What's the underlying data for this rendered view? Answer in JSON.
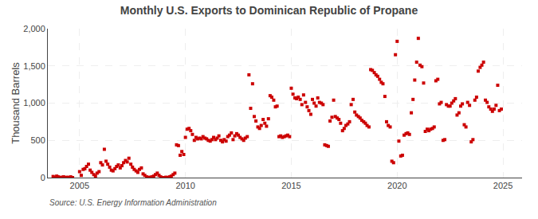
{
  "chart_data": {
    "type": "scatter",
    "title": "Monthly U.S. Exports to Dominican Republic of Propane",
    "ylabel": "Thousand Barrels",
    "annotations": [
      "Source: U.S. Energy Information Administration"
    ],
    "color": "#cc0000",
    "marker": "square",
    "grid": true,
    "xlim": [
      2003.5,
      2025.9
    ],
    "xticks": [
      2005,
      2010,
      2015,
      2020,
      2025
    ],
    "ylim": [
      0,
      2000
    ],
    "yticks": [
      0,
      500,
      {
        "value": 1000,
        "label": "1,000"
      },
      {
        "value": 1500,
        "label": "1,500"
      },
      {
        "value": 2000,
        "label": "2,000"
      }
    ],
    "x": [
      2003.75,
      2003.83,
      2003.92,
      2004.0,
      2004.08,
      2004.17,
      2004.25,
      2004.33,
      2004.42,
      2004.5,
      2004.58,
      2004.67,
      2005.0,
      2005.08,
      2005.17,
      2005.25,
      2005.33,
      2005.42,
      2005.5,
      2005.58,
      2005.67,
      2005.75,
      2005.83,
      2005.92,
      2006.0,
      2006.08,
      2006.17,
      2006.25,
      2006.33,
      2006.42,
      2006.5,
      2006.58,
      2006.67,
      2006.75,
      2006.83,
      2006.92,
      2007.0,
      2007.08,
      2007.17,
      2007.25,
      2007.33,
      2007.42,
      2007.5,
      2007.58,
      2007.67,
      2007.75,
      2007.83,
      2007.92,
      2008.0,
      2008.08,
      2008.17,
      2008.25,
      2008.33,
      2008.42,
      2008.5,
      2008.58,
      2008.67,
      2008.75,
      2008.83,
      2008.92,
      2009.0,
      2009.08,
      2009.17,
      2009.25,
      2009.33,
      2009.42,
      2009.5,
      2009.58,
      2009.67,
      2009.75,
      2009.83,
      2009.92,
      2010.0,
      2010.08,
      2010.17,
      2010.25,
      2010.33,
      2010.42,
      2010.5,
      2010.58,
      2010.67,
      2010.75,
      2010.83,
      2010.92,
      2011.0,
      2011.08,
      2011.17,
      2011.25,
      2011.33,
      2011.42,
      2011.5,
      2011.58,
      2011.67,
      2011.75,
      2011.83,
      2011.92,
      2012.0,
      2012.08,
      2012.17,
      2012.25,
      2012.33,
      2012.42,
      2012.5,
      2012.58,
      2012.67,
      2012.75,
      2012.83,
      2012.92,
      2013.0,
      2013.08,
      2013.17,
      2013.25,
      2013.33,
      2013.42,
      2013.5,
      2013.58,
      2013.67,
      2013.75,
      2013.83,
      2013.92,
      2014.0,
      2014.08,
      2014.17,
      2014.25,
      2014.33,
      2014.42,
      2014.5,
      2014.58,
      2014.67,
      2014.75,
      2014.83,
      2014.92,
      2015.0,
      2015.08,
      2015.17,
      2015.25,
      2015.33,
      2015.42,
      2015.5,
      2015.58,
      2015.67,
      2015.75,
      2015.83,
      2015.92,
      2016.0,
      2016.08,
      2016.17,
      2016.25,
      2016.33,
      2016.42,
      2016.5,
      2016.58,
      2016.67,
      2016.75,
      2016.83,
      2016.92,
      2017.0,
      2017.08,
      2017.17,
      2017.25,
      2017.33,
      2017.42,
      2017.5,
      2017.58,
      2017.67,
      2017.75,
      2017.83,
      2017.92,
      2018.0,
      2018.08,
      2018.17,
      2018.25,
      2018.33,
      2018.42,
      2018.5,
      2018.58,
      2018.67,
      2018.75,
      2018.83,
      2018.92,
      2019.0,
      2019.08,
      2019.17,
      2019.25,
      2019.33,
      2019.42,
      2019.5,
      2019.58,
      2019.67,
      2019.75,
      2019.83,
      2019.92,
      2020.0,
      2020.08,
      2020.17,
      2020.25,
      2020.33,
      2020.42,
      2020.5,
      2020.58,
      2020.67,
      2020.75,
      2020.83,
      2020.92,
      2021.0,
      2021.08,
      2021.17,
      2021.25,
      2021.33,
      2021.42,
      2021.5,
      2021.58,
      2021.67,
      2021.75,
      2021.83,
      2021.92,
      2022.0,
      2022.08,
      2022.17,
      2022.25,
      2022.33,
      2022.42,
      2022.5,
      2022.58,
      2022.67,
      2022.75,
      2022.83,
      2022.92,
      2023.0,
      2023.08,
      2023.17,
      2023.25,
      2023.33,
      2023.42,
      2023.5,
      2023.58,
      2023.67,
      2023.75,
      2023.83,
      2023.92,
      2024.0,
      2024.08,
      2024.17,
      2024.25,
      2024.33,
      2024.42,
      2024.5,
      2024.58,
      2024.67,
      2024.75,
      2024.83,
      2024.92
    ],
    "values": [
      15,
      5,
      20,
      10,
      0,
      5,
      10,
      0,
      5,
      0,
      10,
      0,
      80,
      30,
      110,
      120,
      150,
      180,
      100,
      70,
      40,
      20,
      60,
      80,
      200,
      170,
      380,
      220,
      180,
      140,
      100,
      90,
      120,
      150,
      170,
      130,
      160,
      200,
      230,
      210,
      260,
      180,
      140,
      110,
      90,
      70,
      110,
      130,
      50,
      30,
      10,
      0,
      5,
      10,
      20,
      40,
      60,
      30,
      10,
      0,
      0,
      5,
      0,
      10,
      20,
      40,
      60,
      440,
      430,
      300,
      350,
      310,
      540,
      650,
      660,
      630,
      580,
      500,
      540,
      520,
      530,
      520,
      550,
      530,
      520,
      500,
      490,
      510,
      540,
      510,
      530,
      560,
      500,
      480,
      510,
      490,
      550,
      570,
      600,
      510,
      560,
      590,
      570,
      540,
      520,
      500,
      530,
      550,
      1380,
      930,
      1260,
      820,
      760,
      680,
      660,
      700,
      780,
      730,
      690,
      790,
      1100,
      1080,
      1040,
      950,
      960,
      550,
      560,
      540,
      550,
      560,
      570,
      550,
      1200,
      1120,
      1070,
      1060,
      1080,
      1050,
      980,
      1110,
      1010,
      950,
      900,
      850,
      1050,
      1000,
      960,
      1070,
      1010,
      1000,
      980,
      440,
      430,
      420,
      760,
      810,
      1040,
      820,
      800,
      780,
      730,
      630,
      660,
      700,
      720,
      750,
      980,
      1050,
      880,
      840,
      820,
      800,
      770,
      750,
      730,
      700,
      680,
      1450,
      1440,
      1410,
      1380,
      1360,
      1320,
      1280,
      1260,
      1090,
      750,
      700,
      680,
      220,
      200,
      1650,
      1830,
      490,
      290,
      300,
      570,
      590,
      600,
      580,
      870,
      1050,
      1310,
      1550,
      1870,
      1510,
      1490,
      1270,
      620,
      650,
      630,
      650,
      660,
      680,
      1300,
      1320,
      990,
      1010,
      500,
      510,
      980,
      960,
      960,
      1000,
      1030,
      1060,
      840,
      870,
      960,
      990,
      710,
      680,
      1010,
      970,
      480,
      510,
      1040,
      1080,
      1430,
      1480,
      1510,
      1550,
      1040,
      1010,
      950,
      920,
      890,
      920,
      970,
      1240,
      900,
      920
    ]
  }
}
